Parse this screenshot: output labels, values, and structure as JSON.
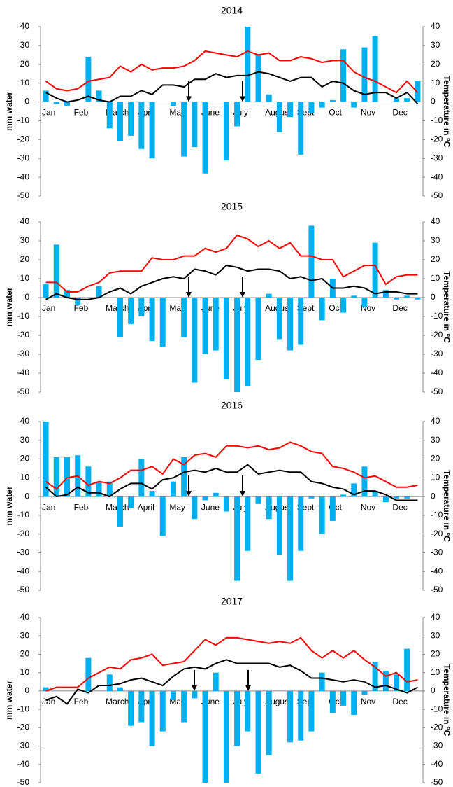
{
  "chart_data": [
    {
      "type": "bar",
      "title": "2014",
      "ylabel": "mm water",
      "y2label": "Temperature in °C",
      "categories": [
        "Jan",
        null,
        null,
        "Feb",
        null,
        null,
        "March",
        null,
        null,
        "April",
        null,
        null,
        "May",
        null,
        null,
        "June",
        null,
        null,
        "July",
        null,
        null,
        "August",
        null,
        null,
        "Sept",
        null,
        null,
        "Oct",
        null,
        null,
        "Nov",
        null,
        null,
        "Dec",
        null,
        null
      ],
      "series": [
        {
          "type": "bar",
          "color": "#00b0f0",
          "values": [
            6,
            -1,
            -2,
            0,
            24,
            6,
            -14,
            -21,
            -18,
            -25,
            -30,
            0,
            -2,
            -29,
            -24,
            -38,
            0,
            -31,
            -13,
            40,
            25,
            4,
            -16,
            -8,
            -28,
            -6,
            -3,
            1,
            28,
            -3,
            29,
            35,
            0,
            2,
            2,
            11
          ]
        },
        {
          "type": "line",
          "axis": "y2",
          "color": "#ff0000",
          "values": [
            11,
            7,
            6,
            7,
            11,
            12,
            13,
            19,
            16,
            20,
            17,
            18,
            18,
            19,
            22,
            27,
            26,
            25,
            24,
            27,
            25,
            26,
            22,
            22,
            24,
            23,
            21,
            22,
            22,
            16,
            13,
            11,
            8,
            5,
            11,
            5
          ]
        },
        {
          "type": "line",
          "axis": "y2",
          "color": "#000000",
          "values": [
            5,
            2,
            0,
            1,
            3,
            1,
            0,
            3,
            3,
            6,
            4,
            9,
            9,
            8,
            12,
            12,
            15,
            13,
            14,
            14,
            16,
            15,
            13,
            11,
            13,
            13,
            8,
            11,
            10,
            6,
            4,
            5,
            5,
            2,
            5,
            -1
          ]
        }
      ],
      "ylim": [
        -50,
        40
      ],
      "yticks": [
        -50,
        -40,
        -30,
        -20,
        -10,
        0,
        10,
        20,
        30,
        40
      ],
      "y2lim": [
        -50,
        40
      ],
      "y2ticks": [
        -50,
        -40,
        -30,
        -20,
        -10,
        0,
        10,
        20,
        30,
        40
      ]
    },
    {
      "type": "bar",
      "title": "2015",
      "ylabel": "mm water",
      "y2label": "Temperature in °C",
      "categories": [
        "Jan",
        null,
        null,
        "Feb",
        null,
        null,
        "March",
        null,
        null,
        "April",
        null,
        null,
        "May",
        null,
        null,
        "June",
        null,
        null,
        "July",
        null,
        null,
        "August",
        null,
        null,
        "Sept",
        null,
        null,
        "Oct",
        null,
        null,
        "Nov",
        null,
        null,
        "Dec",
        null,
        null
      ],
      "series": [
        {
          "type": "bar",
          "color": "#00b0f0",
          "values": [
            7,
            28,
            4,
            -4,
            0,
            6,
            0,
            -21,
            -14,
            -10,
            -23,
            -26,
            0,
            -21,
            -45,
            -30,
            -28,
            -43,
            -50,
            -47,
            -33,
            2,
            -22,
            -28,
            -25,
            38,
            -12,
            10,
            -8,
            1,
            -5,
            29,
            4,
            -1,
            1,
            -1
          ]
        },
        {
          "type": "line",
          "axis": "y2",
          "color": "#ff0000",
          "values": [
            8,
            8,
            3,
            3,
            6,
            8,
            13,
            14,
            14,
            14,
            21,
            20,
            20,
            22,
            22,
            26,
            24,
            26,
            33,
            31,
            27,
            30,
            26,
            29,
            22,
            22,
            20,
            20,
            11,
            14,
            17,
            17,
            7,
            11,
            12,
            12
          ]
        },
        {
          "type": "line",
          "axis": "y2",
          "color": "#000000",
          "values": [
            -1,
            2,
            0,
            -1,
            -1,
            0,
            3,
            5,
            2,
            6,
            8,
            10,
            11,
            10,
            15,
            14,
            12,
            17,
            16,
            14,
            15,
            15,
            14,
            10,
            11,
            9,
            10,
            5,
            5,
            6,
            5,
            2,
            3,
            3,
            2,
            2
          ]
        }
      ],
      "ylim": [
        -50,
        40
      ],
      "yticks": [
        -50,
        -40,
        -30,
        -20,
        -10,
        0,
        10,
        20,
        30,
        40
      ],
      "y2lim": [
        -50,
        40
      ],
      "y2ticks": [
        -50,
        -40,
        -30,
        -20,
        -10,
        0,
        10,
        20,
        30,
        40
      ]
    },
    {
      "type": "bar",
      "title": "2016",
      "ylabel": "mm water",
      "y2label": "Temperature in °C",
      "categories": [
        "Jan",
        null,
        null,
        "Feb",
        null,
        null,
        "March",
        null,
        null,
        "April",
        null,
        null,
        "May",
        null,
        null,
        "June",
        null,
        null,
        "July",
        null,
        null,
        "August",
        null,
        null,
        "Sept",
        null,
        null,
        "Oct",
        null,
        null,
        "Nov",
        null,
        null,
        "Dec",
        null,
        null
      ],
      "series": [
        {
          "type": "bar",
          "color": "#00b0f0",
          "values": [
            40,
            21,
            21,
            22,
            16,
            8,
            8,
            -16,
            -6,
            20,
            3,
            -21,
            8,
            21,
            -12,
            -2,
            2,
            -8,
            -45,
            -29,
            -4,
            -12,
            -31,
            -45,
            -29,
            -1,
            -20,
            -13,
            1,
            7,
            16,
            3,
            -3,
            -1,
            -1,
            0
          ]
        },
        {
          "type": "line",
          "axis": "y2",
          "color": "#ff0000",
          "values": [
            8,
            4,
            10,
            11,
            6,
            8,
            7,
            10,
            14,
            14,
            16,
            12,
            20,
            17,
            22,
            23,
            21,
            27,
            27,
            26,
            27,
            25,
            26,
            29,
            27,
            24,
            23,
            16,
            15,
            13,
            10,
            11,
            8,
            5,
            5,
            6
          ]
        },
        {
          "type": "line",
          "axis": "y2",
          "color": "#000000",
          "values": [
            5,
            0,
            1,
            5,
            2,
            2,
            0,
            4,
            7,
            7,
            4,
            9,
            10,
            13,
            14,
            13,
            15,
            13,
            13,
            17,
            12,
            13,
            14,
            13,
            13,
            8,
            7,
            5,
            4,
            1,
            3,
            3,
            1,
            -2,
            -2,
            -2
          ]
        }
      ],
      "ylim": [
        -50,
        40
      ],
      "yticks": [
        -50,
        -40,
        -30,
        -20,
        -10,
        0,
        10,
        20,
        30,
        40
      ],
      "y2lim": [
        -50,
        40
      ],
      "y2ticks": [
        -50,
        -40,
        -30,
        -20,
        -10,
        0,
        10,
        20,
        30,
        40
      ]
    },
    {
      "type": "bar",
      "title": "2017",
      "ylabel": "mm water",
      "y2label": "Temperature in °C",
      "categories": [
        "Jan",
        null,
        null,
        "Feb",
        null,
        null,
        "March",
        null,
        null,
        "April",
        null,
        null,
        "May",
        null,
        null,
        "June",
        null,
        null,
        "July",
        null,
        null,
        "August",
        null,
        null,
        "Sept",
        null,
        null,
        "Oct",
        null,
        null,
        "Nov",
        null,
        null,
        "Dec",
        null,
        null
      ],
      "series": [
        {
          "type": "bar",
          "color": "#00b0f0",
          "values": [
            2,
            0,
            0,
            0,
            18,
            0,
            9,
            2,
            -19,
            -17,
            -30,
            -22,
            -5,
            -17,
            -4,
            -50,
            10,
            -50,
            -30,
            -22,
            -45,
            -35,
            0,
            -28,
            -27,
            -22,
            10,
            -12,
            -8,
            -13,
            -2,
            16,
            11,
            9,
            23,
            0
          ]
        },
        {
          "type": "line",
          "axis": "y2",
          "color": "#ff0000",
          "values": [
            0,
            2,
            2,
            2,
            7,
            10,
            13,
            12,
            17,
            18,
            20,
            14,
            15,
            16,
            22,
            28,
            25,
            29,
            29,
            28,
            27,
            26,
            27,
            26,
            29,
            22,
            18,
            22,
            18,
            22,
            17,
            13,
            8,
            10,
            5,
            6
          ]
        },
        {
          "type": "line",
          "axis": "y2",
          "color": "#000000",
          "values": [
            -5,
            -3,
            -7,
            1,
            -1,
            3,
            3,
            4,
            6,
            7,
            5,
            3,
            8,
            12,
            13,
            12,
            15,
            17,
            15,
            15,
            15,
            15,
            13,
            14,
            11,
            7,
            7,
            6,
            5,
            6,
            5,
            2,
            3,
            1,
            -1,
            2
          ]
        }
      ],
      "ylim": [
        -50,
        40
      ],
      "yticks": [
        -50,
        -40,
        -30,
        -20,
        -10,
        0,
        10,
        20,
        30,
        40
      ],
      "y2lim": [
        -50,
        40
      ],
      "y2ticks": [
        -50,
        -40,
        -30,
        -20,
        -10,
        0,
        10,
        20,
        30,
        40
      ]
    }
  ]
}
